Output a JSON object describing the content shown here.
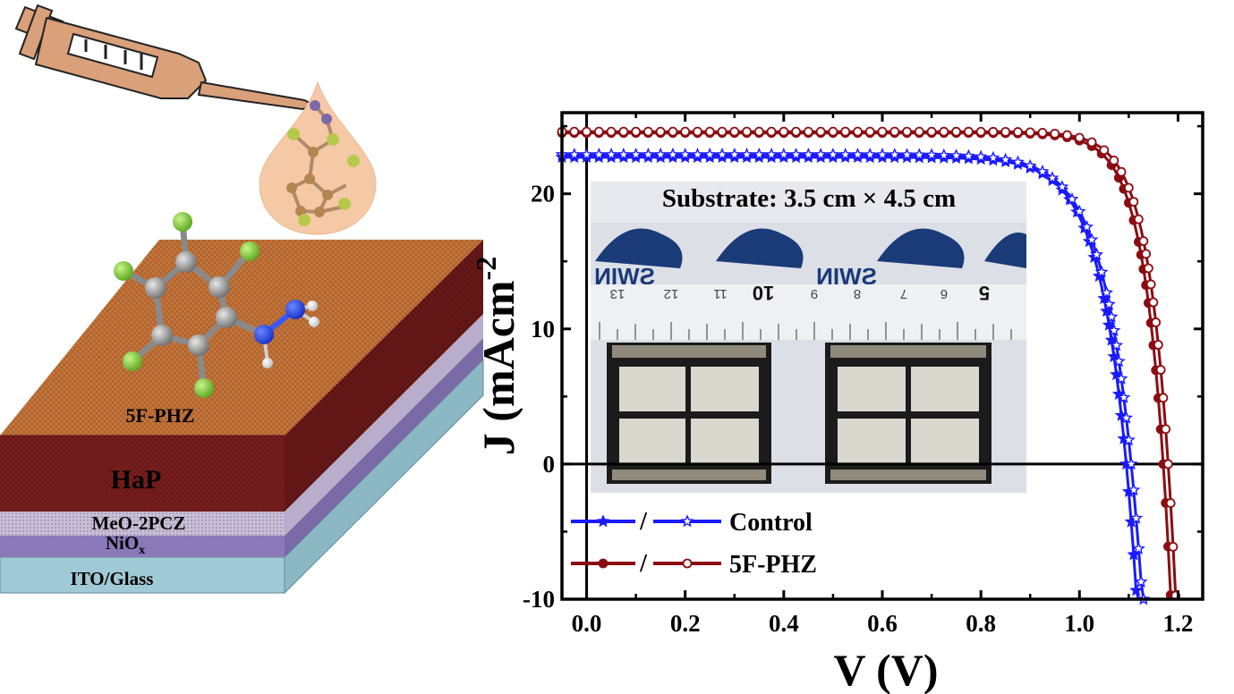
{
  "layers": {
    "pfz": "5F-PHZ",
    "hap": "HaP",
    "meo": "MeO-2PCZ",
    "nio": "NiO",
    "nio_sub": "x",
    "ito": "ITO/Glass"
  },
  "inset": {
    "caption": "Substrate: 3.5 cm × 4.5 cm",
    "ruler_numbers": [
      "13",
      "12",
      "11",
      "10",
      "9",
      "8",
      "7",
      "6",
      "5"
    ],
    "logo_text": "SWIN"
  },
  "colors": {
    "control": "#1a1aff",
    "pfz": "#8b0d12",
    "top_layer": "#c9763a",
    "hap_layer": "#7a1e1e",
    "meo_layer": "#c8bfd6",
    "nio_layer": "#8a79b8",
    "ito_layer": "#9fc9d4",
    "drop": "#f6c9a6",
    "syringe": "#d9a07a"
  },
  "chart_data": {
    "type": "line",
    "xlabel": "V (V)",
    "ylabel": "J (mAcm",
    "ylabel_sup": "-2",
    "xlim": [
      -0.05,
      1.25
    ],
    "ylim": [
      -10,
      26
    ],
    "xticks": [
      "0.0",
      "0.2",
      "0.4",
      "0.6",
      "0.8",
      "1.0",
      "1.2"
    ],
    "xtick_values": [
      0.0,
      0.2,
      0.4,
      0.6,
      0.8,
      1.0,
      1.2
    ],
    "yticks": [
      "-10",
      "0",
      "10",
      "20"
    ],
    "ytick_values": [
      -10,
      0,
      10,
      20
    ],
    "legend_sep": "/",
    "series": [
      {
        "name": "Control",
        "color_key": "control",
        "marker": "star",
        "curves": [
          {
            "fill": "filled",
            "jsc": 22.7,
            "voc": 1.095,
            "n": 0.058,
            "rs": 0.0
          },
          {
            "fill": "open",
            "jsc": 22.9,
            "voc": 1.105,
            "n": 0.062,
            "rs": 0.0
          }
        ]
      },
      {
        "name": "5F-PHZ",
        "color_key": "pfz",
        "marker": "circle",
        "curves": [
          {
            "fill": "filled",
            "jsc": 24.5,
            "voc": 1.17,
            "n": 0.045,
            "rs": 0.0
          },
          {
            "fill": "open",
            "jsc": 24.6,
            "voc": 1.18,
            "n": 0.045,
            "rs": 0.0
          }
        ]
      }
    ]
  }
}
